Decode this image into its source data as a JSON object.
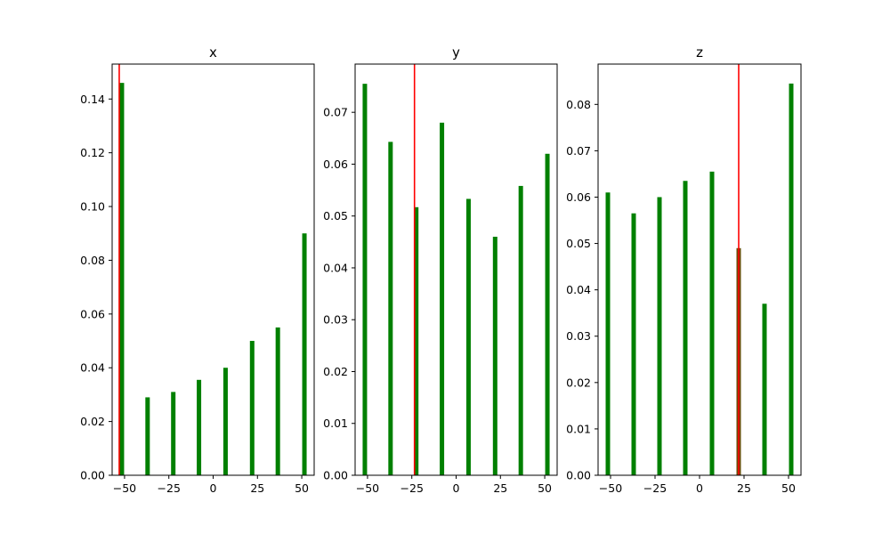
{
  "chart_data": [
    {
      "type": "bar",
      "title": "x",
      "x": [
        -51.5,
        -37,
        -22.5,
        -8,
        7,
        22,
        36.5,
        51.5
      ],
      "values": [
        0.146,
        0.029,
        0.031,
        0.0355,
        0.04,
        0.05,
        0.055,
        0.09
      ],
      "bar_color": "#008000",
      "xlim": [
        -57,
        57
      ],
      "ylim": [
        0,
        0.153
      ],
      "xticks": [
        -50,
        -25,
        0,
        25,
        50
      ],
      "xtick_labels": [
        "−50",
        "−25",
        "0",
        "25",
        "50"
      ],
      "yticks": [
        0.0,
        0.02,
        0.04,
        0.06,
        0.08,
        0.1,
        0.12,
        0.14
      ],
      "ytick_labels": [
        "0.00",
        "0.02",
        "0.04",
        "0.06",
        "0.08",
        "0.10",
        "0.12",
        "0.14"
      ],
      "vline": {
        "x": -53,
        "color": "#ff0000"
      }
    },
    {
      "type": "bar",
      "title": "y",
      "x": [
        -51.5,
        -37,
        -22.5,
        -8,
        7,
        22,
        36.5,
        51.5
      ],
      "values": [
        0.0755,
        0.0643,
        0.0517,
        0.068,
        0.0533,
        0.046,
        0.0558,
        0.062
      ],
      "bar_color": "#008000",
      "xlim": [
        -57,
        57
      ],
      "ylim": [
        0,
        0.0793
      ],
      "xticks": [
        -50,
        -25,
        0,
        25,
        50
      ],
      "xtick_labels": [
        "−50",
        "−25",
        "0",
        "25",
        "50"
      ],
      "yticks": [
        0.0,
        0.01,
        0.02,
        0.03,
        0.04,
        0.05,
        0.06,
        0.07
      ],
      "ytick_labels": [
        "0.00",
        "0.01",
        "0.02",
        "0.03",
        "0.04",
        "0.05",
        "0.06",
        "0.07"
      ],
      "vline": {
        "x": -23.5,
        "color": "#ff0000"
      }
    },
    {
      "type": "bar",
      "title": "z",
      "x": [
        -51.5,
        -37,
        -22.5,
        -8,
        7,
        22,
        36.5,
        51.5
      ],
      "values": [
        0.061,
        0.0565,
        0.06,
        0.0635,
        0.0655,
        0.049,
        0.037,
        0.0845
      ],
      "bar_color": "#008000",
      "highlight_index": 5,
      "highlight_color": "#6b4a06",
      "xlim": [
        -57,
        57
      ],
      "ylim": [
        0,
        0.0887
      ],
      "xticks": [
        -50,
        -25,
        0,
        25,
        50
      ],
      "xtick_labels": [
        "−50",
        "−25",
        "0",
        "25",
        "50"
      ],
      "yticks": [
        0.0,
        0.01,
        0.02,
        0.03,
        0.04,
        0.05,
        0.06,
        0.07,
        0.08
      ],
      "ytick_labels": [
        "0.00",
        "0.01",
        "0.02",
        "0.03",
        "0.04",
        "0.05",
        "0.06",
        "0.07",
        "0.08"
      ],
      "vline": {
        "x": 22,
        "color": "#ff0000"
      }
    }
  ]
}
